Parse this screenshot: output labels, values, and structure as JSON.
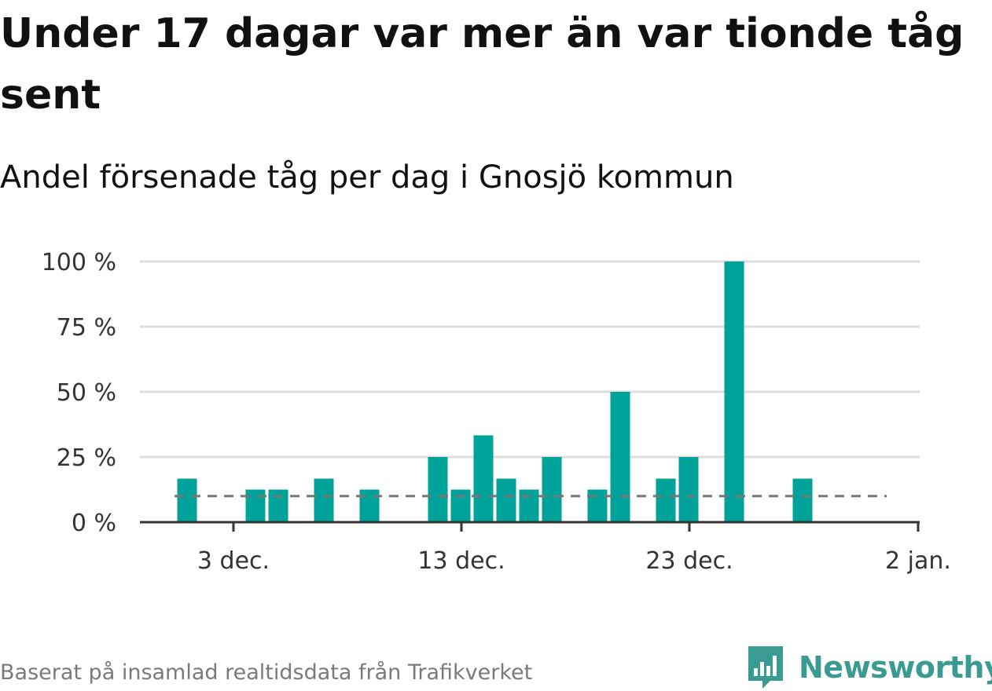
{
  "header": {
    "title": "Under 17 dagar var mer än var tionde tåg sent",
    "subtitle": "Andel försenade tåg per dag i Gnosjö kommun"
  },
  "footer": {
    "source": "Baserat på insamlad realtidsdata från Trafikverket",
    "brand": "Newsworthy",
    "brand_icon": "bar-chart-speech-bubble-icon"
  },
  "colors": {
    "bar": "#00a39a",
    "reference_line": "#777777",
    "grid": "#dddddd",
    "axis": "#333333",
    "brand": "#3a9b93"
  },
  "chart_data": {
    "type": "bar",
    "title": "Under 17 dagar var mer än var tionde tåg sent",
    "subtitle": "Andel försenade tåg per dag i Gnosjö kommun",
    "x": [
      "2 dec.",
      "3 dec.",
      "4 dec.",
      "5 dec.",
      "6 dec.",
      "7 dec.",
      "8 dec.",
      "9 dec.",
      "10 dec.",
      "11 dec.",
      "12 dec.",
      "13 dec.",
      "14 dec.",
      "15 dec.",
      "16 dec.",
      "17 dec.",
      "18 dec.",
      "19 dec.",
      "20 dec.",
      "21 dec.",
      "22 dec.",
      "23 dec.",
      "24 dec.",
      "25 dec.",
      "26 dec.",
      "27 dec.",
      "28 dec.",
      "29 dec.",
      "30 dec.",
      "31 dec."
    ],
    "values": [
      16.7,
      0,
      0,
      12.5,
      12.5,
      0,
      16.7,
      0,
      12.5,
      0,
      0,
      25,
      12.5,
      33.3,
      16.7,
      12.5,
      25,
      0,
      12.5,
      50,
      0,
      16.7,
      25,
      0,
      100,
      0,
      0,
      16.7,
      0,
      0
    ],
    "value_unit": "%",
    "ylim": [
      0,
      100
    ],
    "yticks": [
      0,
      25,
      50,
      75,
      100
    ],
    "ytick_labels": [
      "0 %",
      "25 %",
      "50 %",
      "75 %",
      "100 %"
    ],
    "xlim": [
      "1 dec.",
      "2 jan."
    ],
    "xtick_labels": [
      "3 dec.",
      "13 dec.",
      "23 dec.",
      "2 jan."
    ],
    "reference_line": {
      "value": 10,
      "style": "dashed"
    },
    "grid": true,
    "legend": "none"
  }
}
